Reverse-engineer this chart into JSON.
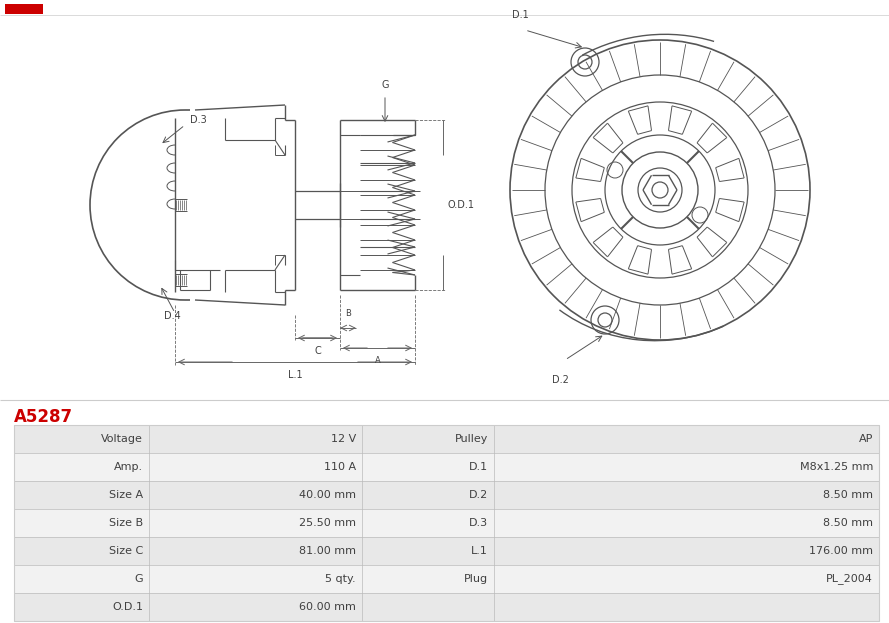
{
  "title": "A5287",
  "title_color": "#cc0000",
  "background_color": "#ffffff",
  "table_row_bg1": "#e8e8e8",
  "table_row_bg2": "#f2f2f2",
  "table_data": [
    [
      "Voltage",
      "12 V",
      "Pulley",
      "AP"
    ],
    [
      "Amp.",
      "110 A",
      "D.1",
      "M8x1.25 mm"
    ],
    [
      "Size A",
      "40.00 mm",
      "D.2",
      "8.50 mm"
    ],
    [
      "Size B",
      "25.50 mm",
      "D.3",
      "8.50 mm"
    ],
    [
      "Size C",
      "81.00 mm",
      "L.1",
      "176.00 mm"
    ],
    [
      "G",
      "5 qty.",
      "Plug",
      "PL_2004"
    ],
    [
      "O.D.1",
      "60.00 mm",
      "",
      ""
    ]
  ],
  "text_color": "#404040",
  "line_color": "#555555",
  "dim_color": "#666666",
  "label_fontsize": 7,
  "table_fontsize": 8,
  "divider_color": "#bbbbbb",
  "border_color": "#cccccc"
}
